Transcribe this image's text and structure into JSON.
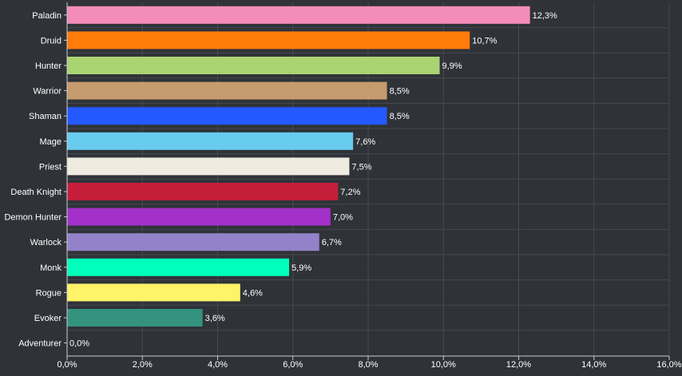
{
  "chart_data": {
    "type": "bar",
    "orientation": "horizontal",
    "categories": [
      "Paladin",
      "Druid",
      "Hunter",
      "Warrior",
      "Shaman",
      "Mage",
      "Priest",
      "Death Knight",
      "Demon Hunter",
      "Warlock",
      "Monk",
      "Rogue",
      "Evoker",
      "Adventurer"
    ],
    "values": [
      12.3,
      10.7,
      9.9,
      8.5,
      8.5,
      7.6,
      7.5,
      7.2,
      7.0,
      6.7,
      5.9,
      4.6,
      3.6,
      0.0
    ],
    "value_labels": [
      "12,3%",
      "10,7%",
      "9,9%",
      "8,5%",
      "8,5%",
      "7,6%",
      "7,5%",
      "7,2%",
      "7,0%",
      "6,7%",
      "5,9%",
      "4,6%",
      "3,6%",
      "0,0%"
    ],
    "colors": [
      "#f48cba",
      "#ff7c0a",
      "#aad372",
      "#c69b6d",
      "#2459ff",
      "#68ccef",
      "#f0ebe0",
      "#c41e3b",
      "#a330c9",
      "#9382c9",
      "#00ffba",
      "#fff468",
      "#33937f",
      "#888888"
    ],
    "xlim": [
      0,
      16
    ],
    "xticks": [
      0,
      2,
      4,
      6,
      8,
      10,
      12,
      14,
      16
    ],
    "xtick_labels": [
      "0,0%",
      "2,0%",
      "4,0%",
      "6,0%",
      "8,0%",
      "10,0%",
      "12,0%",
      "14,0%",
      "16,0%"
    ],
    "title": "",
    "xlabel": "",
    "ylabel": "",
    "grid": true,
    "style": {
      "background": "#2f3338",
      "grid_color": "#464a50",
      "axis_color": "#c8ccd0",
      "text_color": "#ffffff"
    }
  }
}
